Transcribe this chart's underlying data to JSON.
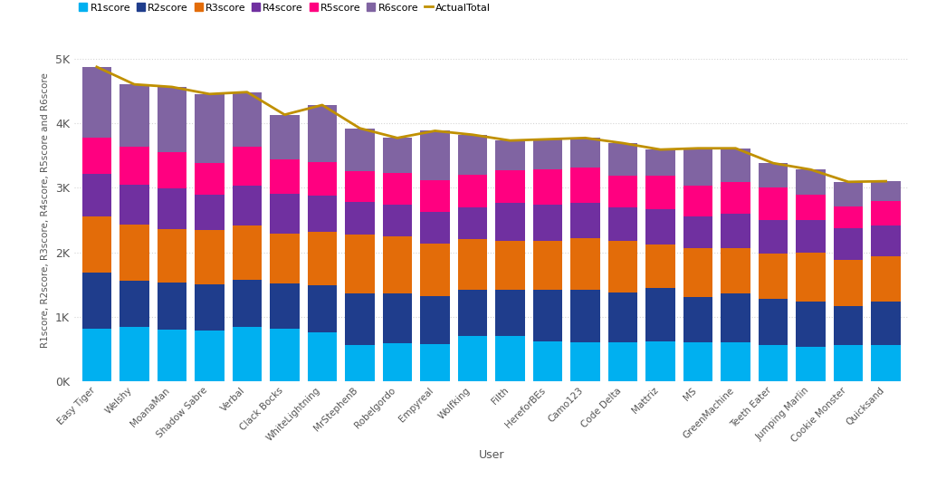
{
  "users": [
    "Easy Tiger",
    "Welshy",
    "MoanaMan",
    "Shadow Sabre",
    "Verbal",
    "Clack Bocks",
    "WhiteLightning",
    "MrStephenB",
    "Robelgordo",
    "Empyreal",
    "Wolfking",
    "Filth",
    "HereforBEs",
    "Camo123",
    "Code Delta",
    "Mattriz",
    "MS",
    "GreenMachine",
    "Teeth Eater",
    "Jumping Marlin",
    "Cookie Monster",
    "Quicksand"
  ],
  "R1score": [
    820,
    840,
    800,
    790,
    840,
    820,
    760,
    560,
    590,
    580,
    700,
    700,
    620,
    600,
    600,
    620,
    610,
    610,
    560,
    540,
    560,
    560
  ],
  "R2score": [
    860,
    720,
    730,
    720,
    740,
    700,
    730,
    800,
    770,
    740,
    720,
    720,
    800,
    820,
    780,
    820,
    700,
    750,
    720,
    700,
    600,
    680
  ],
  "R3score": [
    870,
    870,
    830,
    840,
    840,
    770,
    820,
    920,
    890,
    820,
    780,
    760,
    750,
    800,
    790,
    680,
    760,
    700,
    700,
    750,
    720,
    700
  ],
  "R4score": [
    660,
    620,
    630,
    540,
    610,
    610,
    570,
    500,
    490,
    490,
    500,
    590,
    560,
    550,
    530,
    550,
    490,
    540,
    520,
    510,
    490,
    480
  ],
  "R5score": [
    570,
    590,
    560,
    490,
    610,
    540,
    510,
    470,
    490,
    490,
    500,
    500,
    550,
    540,
    490,
    510,
    470,
    490,
    510,
    390,
    340,
    370
  ],
  "R6score": [
    1090,
    960,
    1010,
    1070,
    840,
    690,
    890,
    670,
    540,
    760,
    620,
    460,
    470,
    460,
    500,
    410,
    580,
    520,
    370,
    390,
    380,
    310
  ],
  "ActualTotal": [
    4870,
    4600,
    4560,
    4450,
    4480,
    4130,
    4280,
    3920,
    3770,
    3880,
    3820,
    3730,
    3750,
    3770,
    3690,
    3590,
    3610,
    3610,
    3380,
    3280,
    3090,
    3100
  ],
  "colors": {
    "R1score": "#00B0F0",
    "R2score": "#1F3D8C",
    "R3score": "#E36C09",
    "R4score": "#7030A0",
    "R5score": "#FF0080",
    "R6score": "#8064A2",
    "ActualTotal": "#C09000"
  },
  "ylabel": "R1score, R2score, R3score, R4score, R5score and R6score",
  "xlabel": "User",
  "yticks": [
    0,
    1000,
    2000,
    3000,
    4000,
    5000
  ],
  "ytick_labels": [
    "0K",
    "1K",
    "2K",
    "3K",
    "4K",
    "5K"
  ],
  "ylim": [
    0,
    5300
  ],
  "bg_color": "#ffffff",
  "grid_color": "#d5d5d5",
  "bar_width": 0.78
}
